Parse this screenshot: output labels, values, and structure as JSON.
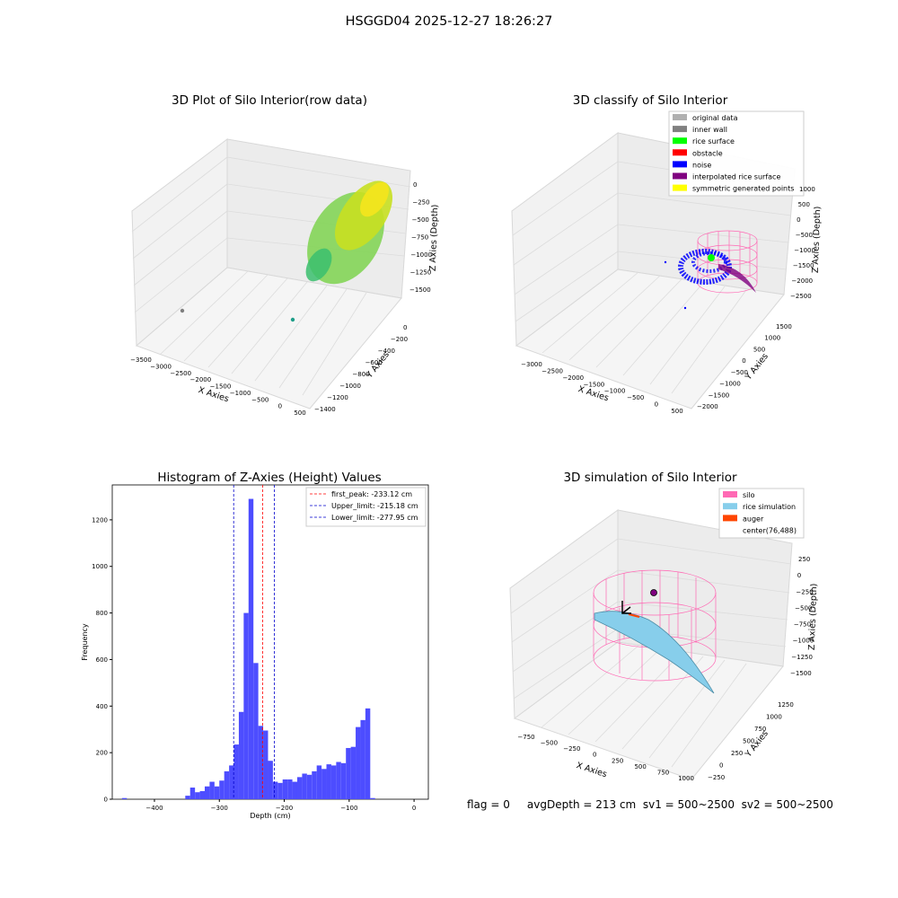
{
  "figure": {
    "suptitle": "HSGGD04 2025-12-27 18:26:27",
    "status_text": "flag = 0     avgDepth = 213 cm  sv1 = 500~2500  sv2 = 500~2500"
  },
  "panels": {
    "raw": {
      "title": "3D Plot of Silo Interior(row data)",
      "xlabel": "X Axies",
      "ylabel": "Y Axies",
      "zlabel": "Z Axies (Depth)",
      "xticks": [
        "−3500",
        "−3000",
        "−2500",
        "−2000",
        "−1500",
        "−1000",
        "−500",
        "0",
        "500"
      ],
      "yticks": [
        "−1400",
        "−1200",
        "−1000",
        "−800",
        "−600",
        "−400",
        "−200",
        "0"
      ],
      "zticks": [
        "−1500",
        "−1250",
        "−1000",
        "−750",
        "−500",
        "−250",
        "0"
      ]
    },
    "classify": {
      "title": "3D classify of Silo Interior",
      "xlabel": "X Axies",
      "ylabel": "Y Axies",
      "zlabel": "Z Axies (Depth)",
      "xticks": [
        "−3000",
        "−2500",
        "−2000",
        "−1500",
        "−1000",
        "−500",
        "0",
        "500"
      ],
      "yticks": [
        "−2000",
        "−1500",
        "−1000",
        "−500",
        "0",
        "500",
        "1000",
        "1500"
      ],
      "zticks": [
        "−2500",
        "−2000",
        "−1500",
        "−1000",
        "−500",
        "0",
        "500",
        "1000"
      ],
      "legend": [
        {
          "label": "original data",
          "color": "#b0b0b0"
        },
        {
          "label": "inner wall",
          "color": "#808080"
        },
        {
          "label": "rice surface",
          "color": "#00ff00"
        },
        {
          "label": "obstacle",
          "color": "#ff0000"
        },
        {
          "label": "noise",
          "color": "#0000ff"
        },
        {
          "label": "interpolated rice surface",
          "color": "#800080"
        },
        {
          "label": "symmetric generated points",
          "color": "#ffff00"
        }
      ]
    },
    "simulation": {
      "title": "3D simulation of Silo Interior",
      "xlabel": "X Axies",
      "ylabel": "Y Axies",
      "zlabel": "Z Axies (Depth)",
      "xticks": [
        "−750",
        "−500",
        "−250",
        "0",
        "250",
        "500",
        "750",
        "1000"
      ],
      "yticks": [
        "−250",
        "0",
        "250",
        "500",
        "750",
        "1000",
        "1250"
      ],
      "zticks": [
        "−1500",
        "−1250",
        "−1000",
        "−750",
        "−500",
        "−250",
        "0",
        "250"
      ],
      "legend": [
        {
          "label": "silo",
          "color": "#ff69b4"
        },
        {
          "label": "rice simulation",
          "color": "#87ceeb"
        },
        {
          "label": "auger",
          "color": "#ff4500"
        },
        {
          "label": "center(76,488)",
          "color": ""
        }
      ]
    }
  },
  "colors": {
    "histogram_bar": "#4d4dff",
    "first_peak_line": "#ff0000",
    "limit_lines": "#0000cc"
  },
  "chart_data": [
    {
      "type": "bar",
      "title": "Histogram of Z-Axies (Height) Values",
      "xlabel": "Depth (cm)",
      "ylabel": "Frequency",
      "xlim": [
        -465,
        22
      ],
      "ylim": [
        0,
        1350
      ],
      "xticks": [
        -400,
        -300,
        -200,
        -100,
        0
      ],
      "yticks": [
        0,
        200,
        400,
        600,
        800,
        1000,
        1200
      ],
      "bin_width": 7.5,
      "bin_starts": [
        -450,
        -442.5,
        -435,
        -427.5,
        -420,
        -412.5,
        -405,
        -397.5,
        -390,
        -382.5,
        -375,
        -367.5,
        -360,
        -352.5,
        -345,
        -337.5,
        -330,
        -322.5,
        -315,
        -307.5,
        -300,
        -292.5,
        -285,
        -277.5,
        -270,
        -262.5,
        -255,
        -247.5,
        -240,
        -232.5,
        -225,
        -217.5,
        -210,
        -202.5,
        -195,
        -187.5,
        -180,
        -172.5,
        -165,
        -157.5,
        -150,
        -142.5,
        -135,
        -127.5,
        -120,
        -112.5,
        -105,
        -97.5,
        -90,
        -82.5,
        -75,
        -67.5,
        -60,
        -52.5,
        -45,
        -37.5,
        -30,
        -22.5,
        -15,
        -7.5
      ],
      "values": [
        5,
        0,
        0,
        0,
        0,
        0,
        0,
        0,
        0,
        0,
        0,
        0,
        0,
        15,
        50,
        30,
        35,
        55,
        75,
        55,
        80,
        120,
        145,
        235,
        375,
        800,
        1290,
        585,
        315,
        295,
        165,
        75,
        70,
        85,
        85,
        75,
        95,
        110,
        105,
        120,
        145,
        130,
        150,
        145,
        160,
        155,
        220,
        225,
        310,
        340,
        390,
        5,
        0,
        0,
        0,
        0,
        0,
        0,
        0,
        0
      ],
      "reference_lines": [
        {
          "label": "first_peak: -233.12 cm",
          "x": -233.12,
          "color": "#ff0000",
          "style": "dashed"
        },
        {
          "label": "Upper_limit: -215.18 cm",
          "x": -215.18,
          "color": "#0000cc",
          "style": "dashed"
        },
        {
          "label": "Lower_limit: -277.95 cm",
          "x": -277.95,
          "color": "#0000cc",
          "style": "dashed"
        }
      ],
      "legend_position": "upper right"
    }
  ]
}
